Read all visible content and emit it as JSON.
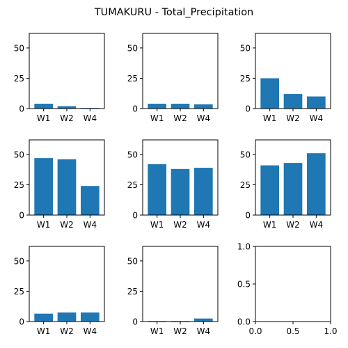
{
  "figure": {
    "suptitle": "TUMAKURU - Total_Precipitation",
    "bar_color": "#1f77b4"
  },
  "chart_data": [
    {
      "type": "bar",
      "categories": [
        "W1",
        "W2",
        "W4"
      ],
      "values": [
        4,
        2,
        0.5
      ],
      "ylim": [
        0,
        62
      ],
      "yticks": [
        0,
        25,
        50
      ]
    },
    {
      "type": "bar",
      "categories": [
        "W1",
        "W2",
        "W4"
      ],
      "values": [
        4,
        4,
        3.5
      ],
      "ylim": [
        0,
        62
      ],
      "yticks": [
        0,
        25,
        50
      ]
    },
    {
      "type": "bar",
      "categories": [
        "W1",
        "W2",
        "W4"
      ],
      "values": [
        25,
        12,
        10
      ],
      "ylim": [
        0,
        62
      ],
      "yticks": [
        0,
        25,
        50
      ]
    },
    {
      "type": "bar",
      "categories": [
        "W1",
        "W2",
        "W4"
      ],
      "values": [
        47,
        46,
        24
      ],
      "ylim": [
        0,
        62
      ],
      "yticks": [
        0,
        25,
        50
      ]
    },
    {
      "type": "bar",
      "categories": [
        "W1",
        "W2",
        "W4"
      ],
      "values": [
        42,
        38,
        39
      ],
      "ylim": [
        0,
        62
      ],
      "yticks": [
        0,
        25,
        50
      ]
    },
    {
      "type": "bar",
      "categories": [
        "W1",
        "W2",
        "W4"
      ],
      "values": [
        41,
        43,
        51
      ],
      "ylim": [
        0,
        62
      ],
      "yticks": [
        0,
        25,
        50
      ]
    },
    {
      "type": "bar",
      "categories": [
        "W1",
        "W2",
        "W4"
      ],
      "values": [
        6.5,
        7.5,
        7.5
      ],
      "ylim": [
        0,
        62
      ],
      "yticks": [
        0,
        25,
        50
      ]
    },
    {
      "type": "bar",
      "categories": [
        "W1",
        "W2",
        "W4"
      ],
      "values": [
        0.5,
        0.5,
        2.5
      ],
      "ylim": [
        0,
        62
      ],
      "yticks": [
        0,
        25,
        50
      ]
    },
    {
      "type": "empty",
      "xlim": [
        0,
        1
      ],
      "ylim": [
        0,
        1
      ],
      "xticks": [
        "0.0",
        "0.5",
        "1.0"
      ],
      "yticks": [
        "0.0",
        "0.5",
        "1.0"
      ]
    }
  ]
}
